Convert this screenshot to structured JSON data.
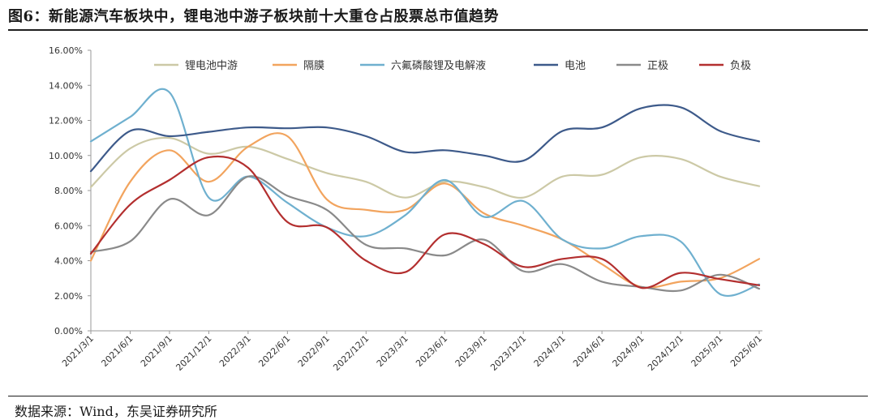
{
  "figure": {
    "title": "图6：新能源汽车板块中，锂电池中游子板块前十大重仓占股票总市值趋势",
    "source": "数据来源：Wind，东吴证券研究所"
  },
  "chart_data": {
    "type": "line",
    "title": "",
    "xlabel": "",
    "ylabel": "",
    "ylim": [
      0,
      16
    ],
    "y_unit": "%",
    "y_ticks": [
      "0.00%",
      "2.00%",
      "4.00%",
      "6.00%",
      "8.00%",
      "10.00%",
      "12.00%",
      "14.00%",
      "16.00%"
    ],
    "y_tick_values": [
      0,
      2,
      4,
      6,
      8,
      10,
      12,
      14,
      16
    ],
    "x": [
      "2021/3/1",
      "2021/6/1",
      "2021/9/1",
      "2021/12/1",
      "2022/3/1",
      "2022/6/1",
      "2022/9/1",
      "2022/12/1",
      "2023/3/1",
      "2023/6/1",
      "2023/9/1",
      "2023/12/1",
      "2024/3/1",
      "2024/6/1",
      "2024/9/1",
      "2024/12/1",
      "2025/3/1",
      "2025/6/1"
    ],
    "grid": false,
    "legend_position": "top",
    "series": [
      {
        "name": "锂电池中游",
        "color": "#ccc9a6",
        "values": [
          8.2,
          10.4,
          11.0,
          10.1,
          10.5,
          9.8,
          9.0,
          8.5,
          7.6,
          8.5,
          8.2,
          7.6,
          8.8,
          8.9,
          9.9,
          9.8,
          8.8,
          8.25
        ]
      },
      {
        "name": "隔膜",
        "color": "#f2a45e",
        "values": [
          4.0,
          8.5,
          10.3,
          8.5,
          10.5,
          11.1,
          7.5,
          6.9,
          6.9,
          8.4,
          6.7,
          6.0,
          5.2,
          3.8,
          2.5,
          2.8,
          3.0,
          4.1
        ]
      },
      {
        "name": "六氟磷酸锂及电解液",
        "color": "#6fb0cf",
        "values": [
          10.8,
          12.2,
          13.6,
          7.6,
          8.8,
          7.3,
          5.9,
          5.4,
          6.6,
          8.6,
          6.5,
          7.4,
          5.2,
          4.7,
          5.4,
          5.1,
          2.1,
          2.65
        ]
      },
      {
        "name": "电池",
        "color": "#3d5a8a",
        "values": [
          9.1,
          11.4,
          11.1,
          11.35,
          11.6,
          11.55,
          11.6,
          11.1,
          10.2,
          10.3,
          10.0,
          9.7,
          11.4,
          11.6,
          12.7,
          12.75,
          11.4,
          10.8
        ]
      },
      {
        "name": "正极",
        "color": "#8a8a8a",
        "values": [
          4.5,
          5.1,
          7.5,
          6.6,
          8.8,
          7.7,
          6.9,
          4.9,
          4.7,
          4.3,
          5.2,
          3.4,
          3.8,
          2.8,
          2.5,
          2.3,
          3.2,
          2.4
        ]
      },
      {
        "name": "负极",
        "color": "#b32f2f",
        "values": [
          4.4,
          7.2,
          8.6,
          9.9,
          9.3,
          6.2,
          5.9,
          4.0,
          3.35,
          5.5,
          4.95,
          3.65,
          4.1,
          4.1,
          2.45,
          3.3,
          2.95,
          2.6
        ]
      }
    ]
  }
}
